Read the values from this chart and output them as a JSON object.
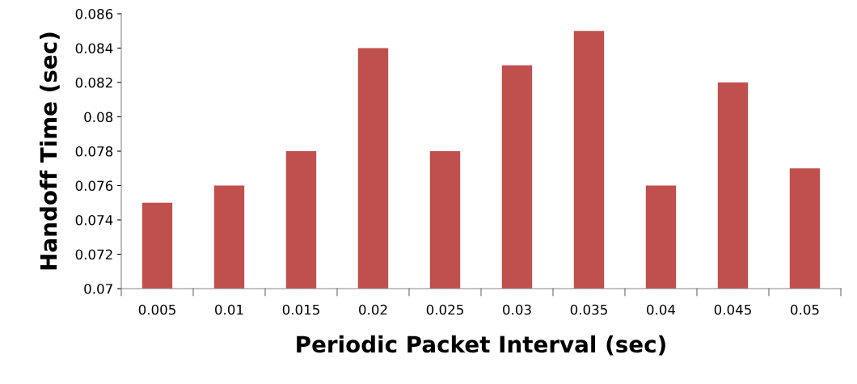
{
  "chart_data": {
    "type": "bar",
    "xlabel": "Periodic Packet Interval (sec)",
    "ylabel": "Handoff Time (sec)",
    "categories": [
      "0.005",
      "0.01",
      "0.015",
      "0.02",
      "0.025",
      "0.03",
      "0.035",
      "0.04",
      "0.045",
      "0.05"
    ],
    "values": [
      0.075,
      0.076,
      0.078,
      0.084,
      0.078,
      0.083,
      0.085,
      0.076,
      0.082,
      0.077
    ],
    "color": "#c0504d",
    "ylim": [
      0.07,
      0.086
    ],
    "yticks": [
      0.07,
      0.072,
      0.074,
      0.076,
      0.078,
      0.08,
      0.082,
      0.084,
      0.086
    ],
    "grid": false,
    "legend": false
  }
}
